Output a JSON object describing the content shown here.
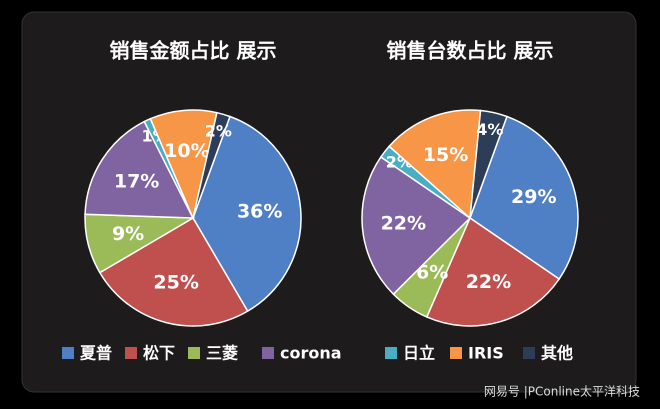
{
  "chart_data": [
    {
      "type": "pie",
      "title": "销售金额占比 展示",
      "categories": [
        "夏普",
        "松下",
        "三菱",
        "corona",
        "日立",
        "IRIS",
        "其他"
      ],
      "values": [
        36,
        25,
        9,
        17,
        1,
        10,
        2
      ],
      "value_labels": [
        "36%",
        "25%",
        "9%",
        "17%",
        "1%",
        "10%",
        "2%"
      ],
      "colors": [
        "#4f7fc4",
        "#c0504d",
        "#9bbb59",
        "#8064a2",
        "#4bacc6",
        "#f79646",
        "#2d3d58"
      ]
    },
    {
      "type": "pie",
      "title": "销售台数占比 展示",
      "categories": [
        "夏普",
        "松下",
        "三菱",
        "corona",
        "日立",
        "IRIS",
        "其他"
      ],
      "values": [
        29,
        22,
        6,
        22,
        2,
        15,
        4
      ],
      "value_labels": [
        "29%",
        "22%",
        "6%",
        "22%",
        "2%",
        "15%",
        "4%"
      ],
      "colors": [
        "#4f7fc4",
        "#c0504d",
        "#9bbb59",
        "#8064a2",
        "#4bacc6",
        "#f79646",
        "#2d3d58"
      ]
    }
  ],
  "watermark": "网易号 |PConline太平洋科技"
}
